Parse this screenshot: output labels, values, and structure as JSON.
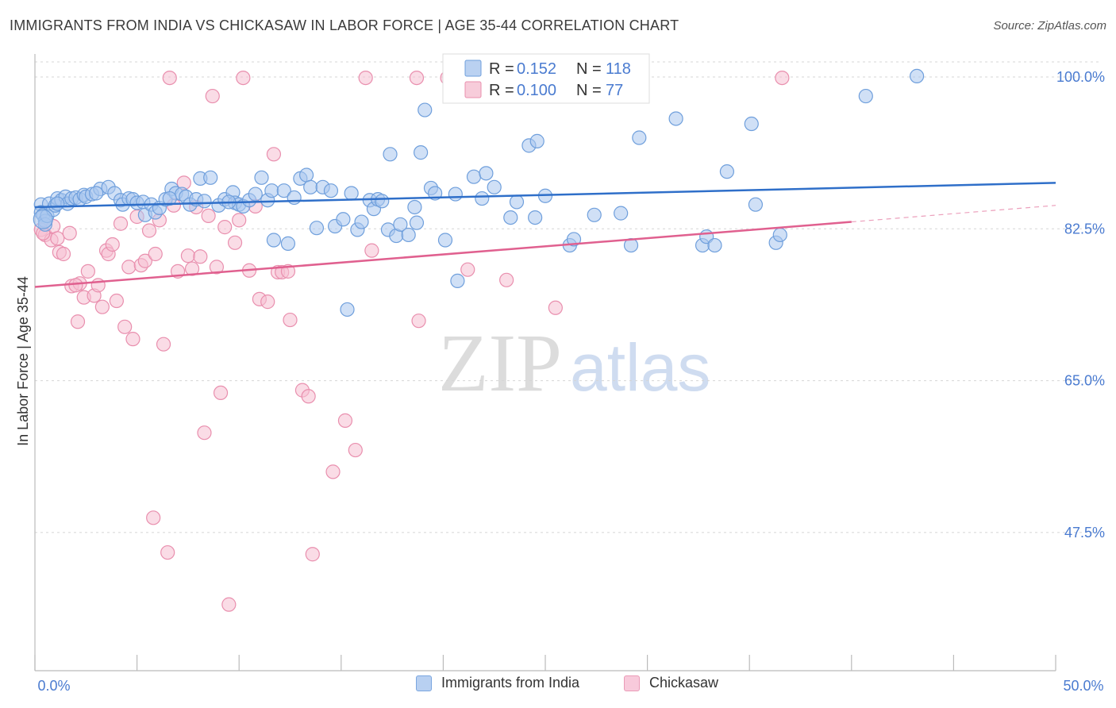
{
  "header": {
    "title": "IMMIGRANTS FROM INDIA VS CHICKASAW IN LABOR FORCE | AGE 35-44 CORRELATION CHART",
    "source": "Source: ZipAtlas.com"
  },
  "watermark": {
    "zip": "ZIP",
    "atlas": "atlas"
  },
  "colors": {
    "blue_fill": "#a9c6ee",
    "blue_stroke": "#6f9fdc",
    "blue_line": "#2f6fc9",
    "pink_fill": "#f5bfd1",
    "pink_stroke": "#e98fae",
    "pink_line": "#e0608f",
    "axis_text": "#4a7bd0",
    "grid": "#d5d5d5"
  },
  "legend_box": {
    "rows": [
      {
        "r_label": "R = ",
        "r_value": "0.152",
        "n_label": "N = ",
        "n_value": "118"
      },
      {
        "r_label": "R = ",
        "r_value": "0.100",
        "n_label": "N = ",
        "n_value": "77"
      }
    ]
  },
  "legend_bottom": {
    "items": [
      "Immigrants from India",
      "Chickasaw"
    ]
  },
  "chart_data": {
    "type": "scatter",
    "title": "IMMIGRANTS FROM INDIA VS CHICKASAW IN LABOR FORCE | AGE 35-44 CORRELATION CHART",
    "xlabel": "",
    "ylabel": "In Labor Force | Age 35-44",
    "xlim": [
      0,
      50
    ],
    "ylim": [
      32,
      103
    ],
    "x_tick_labels": [
      "0.0%",
      "50.0%"
    ],
    "y_ticks": [
      100,
      82.5,
      65,
      47.5
    ],
    "y_tick_labels": [
      "100.0%",
      "82.5%",
      "65.0%",
      "47.5%"
    ],
    "grid": true,
    "legend_position": "top-center",
    "series": [
      {
        "name": "Immigrants from India",
        "r": 0.152,
        "n": 118,
        "trend": {
          "x": [
            0,
            50
          ],
          "y": [
            85.0,
            87.8
          ]
        },
        "points": [
          [
            0.3,
            85.3
          ],
          [
            0.3,
            84.4
          ],
          [
            0.4,
            84.1
          ],
          [
            0.5,
            83.4
          ],
          [
            0.5,
            83.0
          ],
          [
            0.6,
            84.0
          ],
          [
            0.7,
            85.4
          ],
          [
            0.9,
            84.7
          ],
          [
            1.0,
            85.2
          ],
          [
            1.1,
            86.0
          ],
          [
            1.3,
            85.8
          ],
          [
            1.5,
            86.2
          ],
          [
            1.6,
            85.4
          ],
          [
            1.8,
            86.0
          ],
          [
            2.0,
            86.1
          ],
          [
            2.2,
            85.9
          ],
          [
            2.4,
            86.4
          ],
          [
            2.5,
            86.2
          ],
          [
            2.8,
            86.5
          ],
          [
            3.2,
            87.1
          ],
          [
            3.6,
            87.3
          ],
          [
            3.9,
            86.6
          ],
          [
            4.2,
            85.8
          ],
          [
            4.3,
            85.3
          ],
          [
            4.6,
            86.0
          ],
          [
            4.8,
            85.9
          ],
          [
            5.0,
            85.5
          ],
          [
            5.3,
            85.6
          ],
          [
            5.4,
            84.1
          ],
          [
            5.7,
            85.3
          ],
          [
            5.9,
            84.4
          ],
          [
            6.1,
            84.9
          ],
          [
            6.4,
            85.9
          ],
          [
            6.7,
            87.1
          ],
          [
            6.9,
            86.6
          ],
          [
            7.2,
            86.5
          ],
          [
            7.4,
            86.2
          ],
          [
            7.6,
            85.3
          ],
          [
            7.9,
            85.9
          ],
          [
            8.1,
            88.3
          ],
          [
            8.3,
            85.7
          ],
          [
            8.6,
            88.4
          ],
          [
            9.0,
            85.2
          ],
          [
            9.3,
            85.9
          ],
          [
            9.7,
            86.7
          ],
          [
            9.8,
            85.5
          ],
          [
            10.0,
            85.3
          ],
          [
            10.2,
            85.1
          ],
          [
            10.5,
            85.8
          ],
          [
            10.8,
            86.5
          ],
          [
            11.1,
            88.4
          ],
          [
            11.4,
            85.8
          ],
          [
            11.6,
            86.9
          ],
          [
            11.7,
            81.2
          ],
          [
            12.2,
            86.9
          ],
          [
            12.4,
            80.8
          ],
          [
            12.7,
            86.1
          ],
          [
            13.0,
            88.3
          ],
          [
            13.3,
            88.7
          ],
          [
            13.5,
            87.3
          ],
          [
            13.8,
            82.6
          ],
          [
            14.1,
            87.3
          ],
          [
            14.5,
            86.9
          ],
          [
            14.7,
            82.8
          ],
          [
            15.1,
            83.6
          ],
          [
            15.3,
            73.2
          ],
          [
            15.5,
            86.6
          ],
          [
            15.8,
            82.4
          ],
          [
            16.0,
            83.3
          ],
          [
            16.4,
            85.8
          ],
          [
            16.6,
            84.8
          ],
          [
            16.8,
            85.9
          ],
          [
            17.0,
            85.7
          ],
          [
            17.3,
            82.4
          ],
          [
            17.4,
            91.1
          ],
          [
            17.7,
            81.7
          ],
          [
            17.9,
            83.0
          ],
          [
            18.3,
            81.8
          ],
          [
            18.6,
            85.0
          ],
          [
            18.7,
            83.2
          ],
          [
            18.9,
            91.3
          ],
          [
            19.1,
            96.2
          ],
          [
            19.4,
            87.2
          ],
          [
            19.6,
            86.6
          ],
          [
            20.1,
            81.2
          ],
          [
            20.6,
            86.5
          ],
          [
            20.7,
            76.5
          ],
          [
            21.5,
            88.5
          ],
          [
            21.9,
            86.0
          ],
          [
            22.1,
            88.9
          ],
          [
            22.5,
            87.3
          ],
          [
            23.3,
            83.8
          ],
          [
            23.6,
            85.6
          ],
          [
            24.2,
            92.1
          ],
          [
            24.5,
            83.8
          ],
          [
            24.6,
            92.6
          ],
          [
            25.0,
            86.3
          ],
          [
            26.2,
            80.6
          ],
          [
            26.4,
            81.3
          ],
          [
            27.4,
            84.1
          ],
          [
            28.7,
            84.3
          ],
          [
            29.2,
            80.6
          ],
          [
            29.6,
            93.0
          ],
          [
            31.4,
            95.2
          ],
          [
            32.7,
            80.6
          ],
          [
            32.9,
            81.6
          ],
          [
            33.3,
            80.6
          ],
          [
            33.9,
            89.1
          ],
          [
            35.1,
            94.6
          ],
          [
            35.3,
            85.3
          ],
          [
            36.3,
            80.9
          ],
          [
            36.5,
            81.8
          ],
          [
            40.7,
            97.8
          ],
          [
            43.2,
            100.1
          ],
          [
            1.1,
            85.4
          ],
          [
            3.0,
            86.6
          ],
          [
            6.6,
            86.0
          ],
          [
            9.5,
            85.6
          ]
        ]
      },
      {
        "name": "Chickasaw",
        "r": 0.1,
        "n": 77,
        "trend": {
          "x": [
            0,
            40
          ],
          "y": [
            75.8,
            83.3
          ]
        },
        "trend_dashed": {
          "x": [
            40,
            50
          ],
          "y": [
            83.3,
            85.2
          ]
        },
        "points": [
          [
            0.3,
            82.4
          ],
          [
            0.5,
            81.8
          ],
          [
            0.8,
            81.2
          ],
          [
            0.9,
            82.8
          ],
          [
            1.1,
            81.4
          ],
          [
            1.2,
            79.8
          ],
          [
            1.4,
            79.6
          ],
          [
            1.7,
            82.0
          ],
          [
            1.8,
            75.9
          ],
          [
            2.1,
            71.8
          ],
          [
            2.2,
            76.2
          ],
          [
            2.4,
            74.6
          ],
          [
            2.6,
            77.6
          ],
          [
            2.9,
            74.8
          ],
          [
            3.1,
            76.0
          ],
          [
            3.3,
            73.5
          ],
          [
            3.5,
            80.0
          ],
          [
            3.6,
            79.6
          ],
          [
            3.8,
            80.7
          ],
          [
            4.0,
            74.2
          ],
          [
            4.2,
            83.1
          ],
          [
            4.4,
            71.2
          ],
          [
            4.6,
            78.1
          ],
          [
            4.8,
            69.8
          ],
          [
            5.0,
            83.9
          ],
          [
            5.2,
            78.3
          ],
          [
            5.4,
            78.8
          ],
          [
            5.6,
            82.3
          ],
          [
            5.8,
            49.2
          ],
          [
            5.9,
            79.6
          ],
          [
            6.1,
            83.5
          ],
          [
            6.3,
            69.2
          ],
          [
            6.5,
            45.2
          ],
          [
            6.6,
            99.9
          ],
          [
            7.0,
            77.6
          ],
          [
            7.3,
            87.8
          ],
          [
            7.5,
            79.4
          ],
          [
            7.7,
            77.9
          ],
          [
            7.9,
            85.0
          ],
          [
            8.1,
            79.3
          ],
          [
            8.3,
            59.0
          ],
          [
            8.5,
            84.0
          ],
          [
            8.7,
            97.8
          ],
          [
            8.9,
            78.1
          ],
          [
            9.1,
            63.6
          ],
          [
            9.3,
            82.7
          ],
          [
            9.5,
            39.2
          ],
          [
            9.8,
            80.9
          ],
          [
            10.0,
            83.5
          ],
          [
            10.2,
            99.9
          ],
          [
            10.5,
            77.7
          ],
          [
            10.8,
            85.1
          ],
          [
            11.0,
            74.4
          ],
          [
            11.4,
            74.1
          ],
          [
            11.7,
            91.1
          ],
          [
            11.9,
            77.5
          ],
          [
            12.1,
            77.5
          ],
          [
            12.5,
            72.0
          ],
          [
            13.1,
            63.9
          ],
          [
            13.4,
            63.2
          ],
          [
            13.6,
            45.0
          ],
          [
            14.6,
            54.5
          ],
          [
            15.2,
            60.4
          ],
          [
            15.7,
            57.0
          ],
          [
            16.2,
            99.9
          ],
          [
            16.5,
            80.0
          ],
          [
            18.7,
            99.9
          ],
          [
            18.8,
            71.9
          ],
          [
            20.2,
            99.9
          ],
          [
            21.2,
            77.8
          ],
          [
            23.1,
            76.6
          ],
          [
            25.5,
            73.4
          ],
          [
            36.6,
            99.9
          ],
          [
            0.4,
            82.0
          ],
          [
            2.0,
            76.0
          ],
          [
            12.4,
            77.6
          ],
          [
            6.8,
            85.2
          ]
        ]
      }
    ]
  }
}
